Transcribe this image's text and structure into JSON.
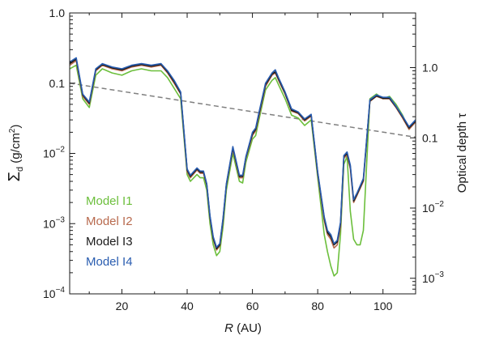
{
  "chart_data": {
    "type": "line",
    "xlabel": "R (AU)",
    "xlabel_var": "R",
    "xlabel_unit": " (AU)",
    "ylabel_left_sym": "Σ",
    "ylabel_left_sub": "d",
    "ylabel_left_unit": " (g/cm",
    "ylabel_left_unit_sup": "2",
    "ylabel_left_unit_close": ")",
    "ylabel_right": "Optical depth τ",
    "xlim": [
      4,
      110
    ],
    "ylim_left": [
      0.0001,
      1.0
    ],
    "ylim_right": [
      0.0006,
      6.0
    ],
    "yscale": "log",
    "x_ticks": [
      20,
      40,
      60,
      80,
      100
    ],
    "x_tick_labels": [
      "20",
      "40",
      "60",
      "80",
      "100"
    ],
    "y_left_ticks": [
      {
        "value": 1.0,
        "base": "1.0",
        "exp": ""
      },
      {
        "value": 0.1,
        "base": "0.1",
        "exp": ""
      },
      {
        "value": 0.01,
        "base": "10",
        "exp": "−2"
      },
      {
        "value": 0.001,
        "base": "10",
        "exp": "−3"
      },
      {
        "value": 0.0001,
        "base": "10",
        "exp": "−4"
      }
    ],
    "y_right_ticks": [
      {
        "value": 1.0,
        "base": "1.0",
        "exp": ""
      },
      {
        "value": 0.1,
        "base": "0.1",
        "exp": ""
      },
      {
        "value": 0.01,
        "base": "10",
        "exp": "−2"
      },
      {
        "value": 0.001,
        "base": "10",
        "exp": "−3"
      }
    ],
    "grid": false,
    "legend_position": "bottom-left",
    "series": [
      {
        "name": "Model I1",
        "color": "#6cbf3c",
        "x": [
          4,
          6,
          8,
          10,
          12,
          14,
          17,
          20,
          23,
          26,
          29,
          32,
          34,
          36,
          38,
          40,
          41,
          43,
          44,
          45,
          46,
          47,
          48,
          49,
          50,
          51,
          52,
          54,
          56,
          57,
          58,
          60,
          61,
          62,
          64,
          66,
          67,
          68,
          70,
          72,
          74,
          76,
          78,
          80,
          82,
          83,
          84,
          85,
          86,
          87,
          88,
          89,
          90,
          91,
          92,
          93,
          94,
          96,
          98,
          100,
          102,
          104,
          106,
          108,
          110
        ],
        "y": [
          0.16,
          0.18,
          0.06,
          0.045,
          0.13,
          0.16,
          0.14,
          0.13,
          0.15,
          0.16,
          0.15,
          0.15,
          0.12,
          0.085,
          0.06,
          0.005,
          0.004,
          0.005,
          0.0045,
          0.0045,
          0.003,
          0.001,
          0.0005,
          0.00035,
          0.0004,
          0.0009,
          0.003,
          0.01,
          0.004,
          0.0038,
          0.0075,
          0.016,
          0.018,
          0.03,
          0.08,
          0.11,
          0.12,
          0.095,
          0.06,
          0.035,
          0.032,
          0.025,
          0.03,
          0.0045,
          0.0007,
          0.0004,
          0.00025,
          0.00018,
          0.0002,
          0.0007,
          0.007,
          0.009,
          0.0015,
          0.0006,
          0.0005,
          0.0005,
          0.0008,
          0.06,
          0.07,
          0.06,
          0.065,
          0.05,
          0.035,
          0.022,
          0.03
        ]
      },
      {
        "name": "Model I2",
        "color": "#b86a4e",
        "x": [
          4,
          6,
          8,
          10,
          12,
          14,
          17,
          20,
          23,
          26,
          29,
          32,
          34,
          36,
          38,
          40,
          41,
          43,
          44,
          45,
          46,
          47,
          48,
          49,
          50,
          51,
          52,
          54,
          56,
          57,
          58,
          60,
          61,
          62,
          64,
          66,
          67,
          68,
          70,
          72,
          74,
          76,
          78,
          80,
          82,
          83,
          84,
          85,
          86,
          87,
          88,
          89,
          90,
          91,
          92,
          94,
          96,
          98,
          100,
          102,
          104,
          106,
          108,
          110
        ],
        "y": [
          0.18,
          0.21,
          0.065,
          0.05,
          0.15,
          0.18,
          0.16,
          0.15,
          0.17,
          0.18,
          0.17,
          0.18,
          0.14,
          0.1,
          0.07,
          0.0055,
          0.0045,
          0.0058,
          0.0052,
          0.0052,
          0.0035,
          0.0012,
          0.0006,
          0.00042,
          0.00048,
          0.0011,
          0.0035,
          0.0115,
          0.0045,
          0.0045,
          0.0085,
          0.018,
          0.021,
          0.034,
          0.09,
          0.13,
          0.14,
          0.11,
          0.07,
          0.04,
          0.037,
          0.029,
          0.034,
          0.005,
          0.0011,
          0.0007,
          0.0006,
          0.00045,
          0.0005,
          0.0009,
          0.0085,
          0.0095,
          0.006,
          0.002,
          0.0025,
          0.004,
          0.055,
          0.065,
          0.06,
          0.06,
          0.045,
          0.032,
          0.022,
          0.028
        ]
      },
      {
        "name": "Model I3",
        "color": "#1a1a1a",
        "x": [
          4,
          6,
          8,
          10,
          12,
          14,
          17,
          20,
          23,
          26,
          29,
          32,
          34,
          36,
          38,
          40,
          41,
          43,
          44,
          45,
          46,
          47,
          48,
          49,
          50,
          51,
          52,
          54,
          56,
          57,
          58,
          60,
          61,
          62,
          64,
          66,
          67,
          68,
          70,
          72,
          74,
          76,
          78,
          80,
          82,
          83,
          84,
          85,
          86,
          87,
          88,
          89,
          90,
          91,
          92,
          94,
          96,
          98,
          100,
          102,
          104,
          106,
          108,
          110
        ],
        "y": [
          0.19,
          0.22,
          0.068,
          0.052,
          0.155,
          0.185,
          0.165,
          0.155,
          0.175,
          0.185,
          0.175,
          0.185,
          0.145,
          0.105,
          0.072,
          0.0058,
          0.0047,
          0.006,
          0.0054,
          0.0054,
          0.0036,
          0.00125,
          0.00062,
          0.00044,
          0.0005,
          0.00115,
          0.0036,
          0.012,
          0.0047,
          0.0047,
          0.0088,
          0.019,
          0.022,
          0.036,
          0.095,
          0.135,
          0.145,
          0.115,
          0.072,
          0.041,
          0.038,
          0.03,
          0.035,
          0.0052,
          0.0012,
          0.00075,
          0.00065,
          0.0005,
          0.00055,
          0.001,
          0.009,
          0.01,
          0.0065,
          0.0021,
          0.0026,
          0.0042,
          0.056,
          0.066,
          0.061,
          0.061,
          0.046,
          0.033,
          0.023,
          0.029
        ]
      },
      {
        "name": "Model I4",
        "color": "#2a5db0",
        "x": [
          4,
          6,
          8,
          10,
          12,
          14,
          17,
          20,
          23,
          26,
          29,
          32,
          34,
          36,
          38,
          40,
          41,
          43,
          44,
          45,
          46,
          47,
          48,
          49,
          50,
          51,
          52,
          54,
          56,
          57,
          58,
          60,
          61,
          62,
          64,
          66,
          67,
          68,
          70,
          72,
          74,
          76,
          78,
          80,
          82,
          83,
          84,
          85,
          86,
          87,
          88,
          89,
          90,
          91,
          92,
          94,
          96,
          98,
          100,
          102,
          104,
          106,
          108,
          110
        ],
        "y": [
          0.2,
          0.23,
          0.07,
          0.054,
          0.16,
          0.19,
          0.17,
          0.16,
          0.18,
          0.19,
          0.18,
          0.19,
          0.15,
          0.11,
          0.075,
          0.006,
          0.0049,
          0.0062,
          0.0056,
          0.0056,
          0.0037,
          0.0013,
          0.00065,
          0.00046,
          0.00052,
          0.0012,
          0.0037,
          0.0125,
          0.0049,
          0.0049,
          0.009,
          0.02,
          0.023,
          0.038,
          0.1,
          0.14,
          0.155,
          0.12,
          0.075,
          0.043,
          0.039,
          0.031,
          0.036,
          0.0054,
          0.00125,
          0.0008,
          0.0007,
          0.00052,
          0.00058,
          0.00105,
          0.0093,
          0.0105,
          0.0068,
          0.0022,
          0.0027,
          0.0044,
          0.058,
          0.068,
          0.063,
          0.063,
          0.047,
          0.034,
          0.024,
          0.03
        ]
      }
    ],
    "reference_line": {
      "style": "dashed",
      "color": "#808080",
      "x": [
        4,
        110
      ],
      "y": [
        0.1,
        0.017
      ]
    }
  }
}
